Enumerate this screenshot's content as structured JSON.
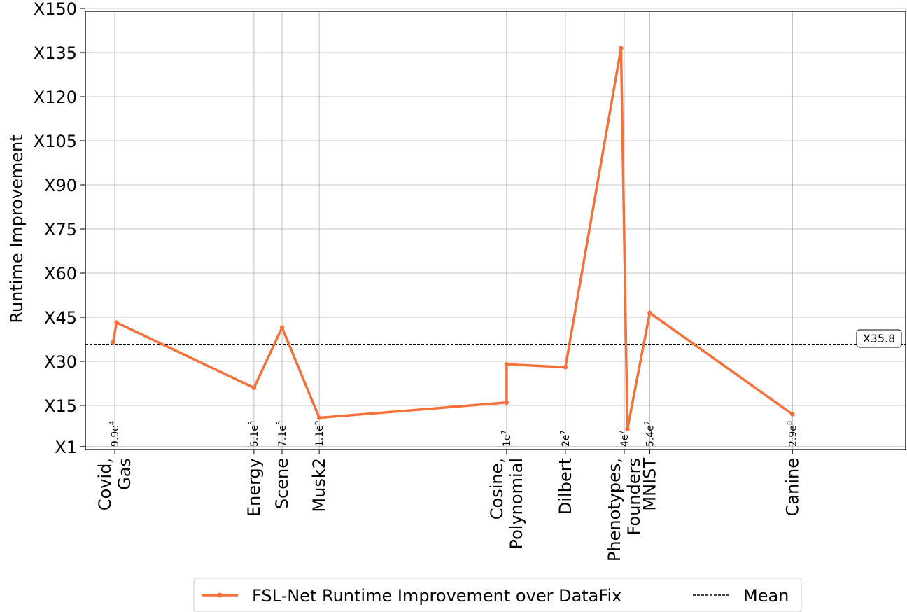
{
  "chart_data": {
    "type": "line",
    "title": "",
    "xlabel": "",
    "ylabel": "Runtime Improvement",
    "xscale": "log",
    "xlim": [
      70000,
      1100000000
    ],
    "ylim": [
      1,
      150
    ],
    "yticks": [
      1,
      15,
      30,
      45,
      60,
      75,
      90,
      105,
      120,
      135,
      150
    ],
    "ytick_labels": [
      "X1",
      "X15",
      "X30",
      "X45",
      "X60",
      "X75",
      "X90",
      "X105",
      "X120",
      "X135",
      "X150"
    ],
    "grid": true,
    "legend_placement": "bottom-center (below plot)",
    "colors": {
      "series": "#f5713a",
      "mean": "#000000"
    },
    "x_ticks": [
      {
        "x": 99000,
        "label": [
          "Covid,",
          "Gas"
        ],
        "size_base": "9.9e",
        "size_exp": "4"
      },
      {
        "x": 510000,
        "label": [
          "Energy"
        ],
        "size_base": "5.1e",
        "size_exp": "5"
      },
      {
        "x": 710000,
        "label": [
          "Scene"
        ],
        "size_base": "7.1e",
        "size_exp": "5"
      },
      {
        "x": 1100000,
        "label": [
          "Musk2"
        ],
        "size_base": "1.1e",
        "size_exp": "6"
      },
      {
        "x": 10000000,
        "label": [
          "Cosine,",
          "Polynomial"
        ],
        "size_base": "1e",
        "size_exp": "7"
      },
      {
        "x": 20000000,
        "label": [
          "Dilbert"
        ],
        "size_base": "2e",
        "size_exp": "7"
      },
      {
        "x": 40000000,
        "label": [
          "Phenotypes,",
          "Founders"
        ],
        "size_base": "4e",
        "size_exp": "7"
      },
      {
        "x": 54000000,
        "label": [
          "MNIST"
        ],
        "size_base": "5.4e",
        "size_exp": "7"
      },
      {
        "x": 290000000,
        "label": [
          "Canine"
        ],
        "size_base": "2.9e",
        "size_exp": "8"
      }
    ],
    "series": [
      {
        "name": "FSL-Net Runtime Improvement over DataFix",
        "points": [
          {
            "x": 97000,
            "y": 36.5
          },
          {
            "x": 101000,
            "y": 43.2
          },
          {
            "x": 510000,
            "y": 21.0
          },
          {
            "x": 710000,
            "y": 41.5
          },
          {
            "x": 1100000,
            "y": 10.8
          },
          {
            "x": 10000000,
            "y": 16.0
          },
          {
            "x": 10000000,
            "y": 29.0
          },
          {
            "x": 20000000,
            "y": 28.0
          },
          {
            "x": 38500000,
            "y": 136.5
          },
          {
            "x": 41500000,
            "y": 7.0
          },
          {
            "x": 54000000,
            "y": 46.5
          },
          {
            "x": 290000000,
            "y": 12.0
          }
        ]
      }
    ],
    "mean": {
      "name": "Mean",
      "y": 35.8,
      "label": "X35.8"
    }
  }
}
